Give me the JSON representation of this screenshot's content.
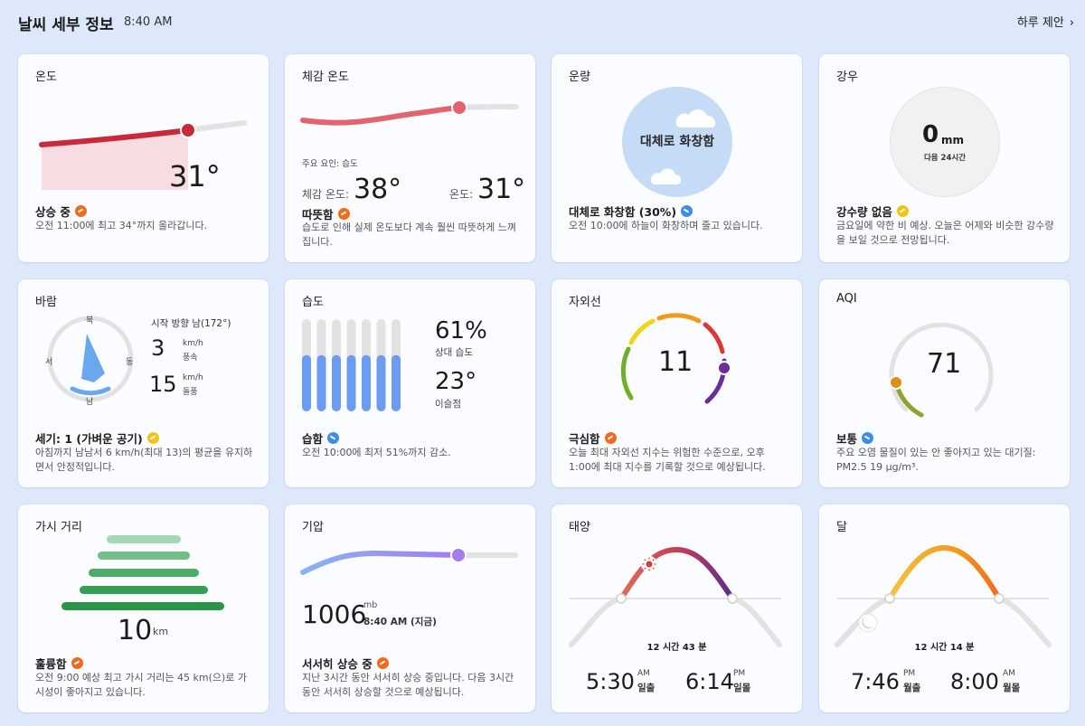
{
  "header": {
    "title": "날씨 세부 정보",
    "time": "8:40 AM",
    "suggestion": "하루 제안",
    "chevron": "›"
  },
  "temp": {
    "title": "온도",
    "value": "31°",
    "status": "상승 중",
    "desc": "오전 11:00에 최고 34°까지 올라갑니다."
  },
  "feels": {
    "title": "체감 온도",
    "factor": "주요 요인: 습도",
    "feels_label": "체감 온도:",
    "feels_value": "38°",
    "temp_label": "온도:",
    "temp_value": "31°",
    "status": "따뜻함",
    "desc": "습도로 인해 실제 온도보다 계속 훨씬 따뜻하게 느껴집니다."
  },
  "cloud": {
    "title": "운량",
    "circle_text": "대체로 화창함",
    "status": "대체로 화창함 (30%)",
    "desc": "오전 10:00에 하늘이 화창하며 줄고 있습니다."
  },
  "rain": {
    "title": "강우",
    "value": "0",
    "unit": "mm",
    "period": "다음 24시간",
    "status": "강수량 없음",
    "desc": "금요일에 약한 비 예상. 오늘은 어제와 비슷한 강수량을 보일 것으로 전망됩니다."
  },
  "wind": {
    "title": "바람",
    "north": "북",
    "south": "남",
    "east": "동",
    "west": "서",
    "direction": "시작 방향 남(172°)",
    "speed": "3",
    "speed_unit": "km/h",
    "speed_label": "풍속",
    "gust": "15",
    "gust_unit": "km/h",
    "gust_label": "돌풍",
    "status": "세기: 1 (가벼운 공기)",
    "desc": "아침까지 남남서 6 km/h(최대 13)의 평균을 유지하면서 안정적입니다."
  },
  "humidity": {
    "title": "습도",
    "value": "61%",
    "value_label": "상대 습도",
    "dew": "23°",
    "dew_label": "이슬점",
    "level": 0.61,
    "status": "습함",
    "desc": "오전 10:00에 최저 51%까지 감소."
  },
  "uv": {
    "title": "자외선",
    "value": "11",
    "status": "극심함",
    "desc": "오늘 최대 자외선 지수는 위험한 수준으로, 오후 1:00에 최대 지수를 기록할 것으로 예상됩니다."
  },
  "aqi": {
    "title": "AQI",
    "value": "71",
    "status": "보통",
    "desc": "주요 오염 물질이 있는 안 좋아지고 있는 대기질: PM2.5 19 μg/m³."
  },
  "visibility": {
    "title": "가시 거리",
    "value": "10",
    "unit": "km",
    "status": "훌륭함",
    "desc": "오전 9:00 예상 최고 가시 거리는 45 km(으)로 가시성이 좋아지고 있습니다."
  },
  "pressure": {
    "title": "기압",
    "value": "1006",
    "unit": "mb",
    "time": "8:40 AM (지금)",
    "status": "서서히 상승 중",
    "desc": "지난 3시간 동안 서서히 상승 중입니다. 다음 3시간 동안 서서히 상승할 것으로 예상됩니다."
  },
  "sun": {
    "title": "태양",
    "duration": "12 시간 43 분",
    "rise_time": "5:30",
    "rise_ampm": "AM",
    "rise_label": "일출",
    "set_time": "6:14",
    "set_ampm": "PM",
    "set_label": "일몰"
  },
  "moon": {
    "title": "달",
    "duration": "12 시간 14 분",
    "rise_time": "7:46",
    "rise_ampm": "PM",
    "rise_label": "월출",
    "set_time": "8:00",
    "set_ampm": "AM",
    "set_label": "월몰"
  },
  "colors": {
    "background": "#dde8fb",
    "card": "#fafcff",
    "temp_red": "#c92a3a",
    "accent_blue": "#6a9df2",
    "uv_purple": "#6a2e9b",
    "green": "#2f9a4f"
  }
}
